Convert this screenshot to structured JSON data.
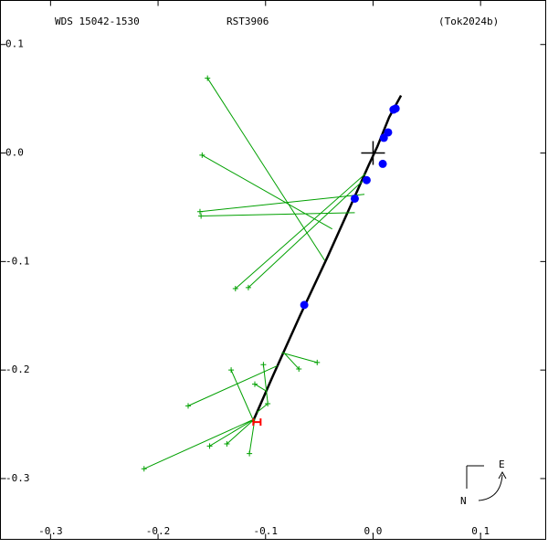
{
  "chart_data": {
    "type": "scatter",
    "title": "WDS 15042-1530",
    "subtitle": "RST3906",
    "reference": "(Tok2024b)",
    "compass": {
      "east": "E",
      "north": "N"
    },
    "xlim": [
      -0.3466,
      0.1606
    ],
    "ylim": [
      -0.356,
      0.1406
    ],
    "xticks": [
      -0.3,
      -0.2,
      -0.1,
      {
        "value": 0,
        "label": "0.0"
      },
      0.1
    ],
    "yticks": [
      0.1,
      {
        "value": 0,
        "label": "0.0"
      },
      -0.1,
      -0.2,
      -0.3
    ],
    "primary": [
      0,
      0
    ],
    "series": [
      {
        "marker": "line",
        "color": "#000000",
        "x": [
          -0.112,
          -0.093,
          -0.068,
          -0.042,
          -0.017,
          -0.004,
          0.004,
          0.015,
          0.026
        ],
        "y": [
          -0.248,
          -0.205,
          -0.15,
          -0.095,
          -0.04,
          -0.011,
          0.006,
          0.033,
          0.053
        ]
      },
      {
        "marker": "plus",
        "color": "#00a000",
        "x": [
          -0.154,
          -0.159,
          -0.161,
          -0.16,
          -0.128,
          -0.116,
          -0.052,
          -0.069,
          -0.172,
          -0.132,
          -0.102,
          -0.098,
          -0.11,
          -0.213,
          -0.152,
          -0.136,
          -0.115
        ],
        "y": [
          0.069,
          -0.002,
          -0.054,
          -0.058,
          -0.125,
          -0.124,
          -0.193,
          -0.199,
          -0.233,
          -0.2,
          -0.195,
          -0.231,
          -0.213,
          -0.291,
          -0.27,
          -0.268,
          -0.277
        ],
        "x_pred": [
          -0.045,
          -0.038,
          -0.008,
          -0.017,
          -0.007,
          -0.01,
          -0.085,
          -0.083,
          -0.089,
          -0.112,
          -0.098,
          -0.108,
          -0.1,
          -0.11,
          -0.11,
          -0.11,
          -0.11
        ],
        "y_pred": [
          -0.099,
          -0.07,
          -0.038,
          -0.055,
          -0.019,
          -0.026,
          -0.184,
          -0.184,
          -0.196,
          -0.245,
          -0.23,
          -0.239,
          -0.219,
          -0.245,
          -0.245,
          -0.245,
          -0.245
        ]
      },
      {
        "marker": "dot",
        "color": "#0000ff",
        "x": [
          0.021,
          0.019,
          0.014,
          0.01,
          0.009,
          -0.006,
          -0.017,
          -0.064
        ],
        "y": [
          0.041,
          0.04,
          0.019,
          0.014,
          -0.01,
          -0.025,
          -0.042,
          -0.14
        ]
      },
      {
        "marker": "h",
        "color": "#ff0000",
        "x": [
          -0.108
        ],
        "y": [
          -0.248
        ]
      }
    ]
  }
}
